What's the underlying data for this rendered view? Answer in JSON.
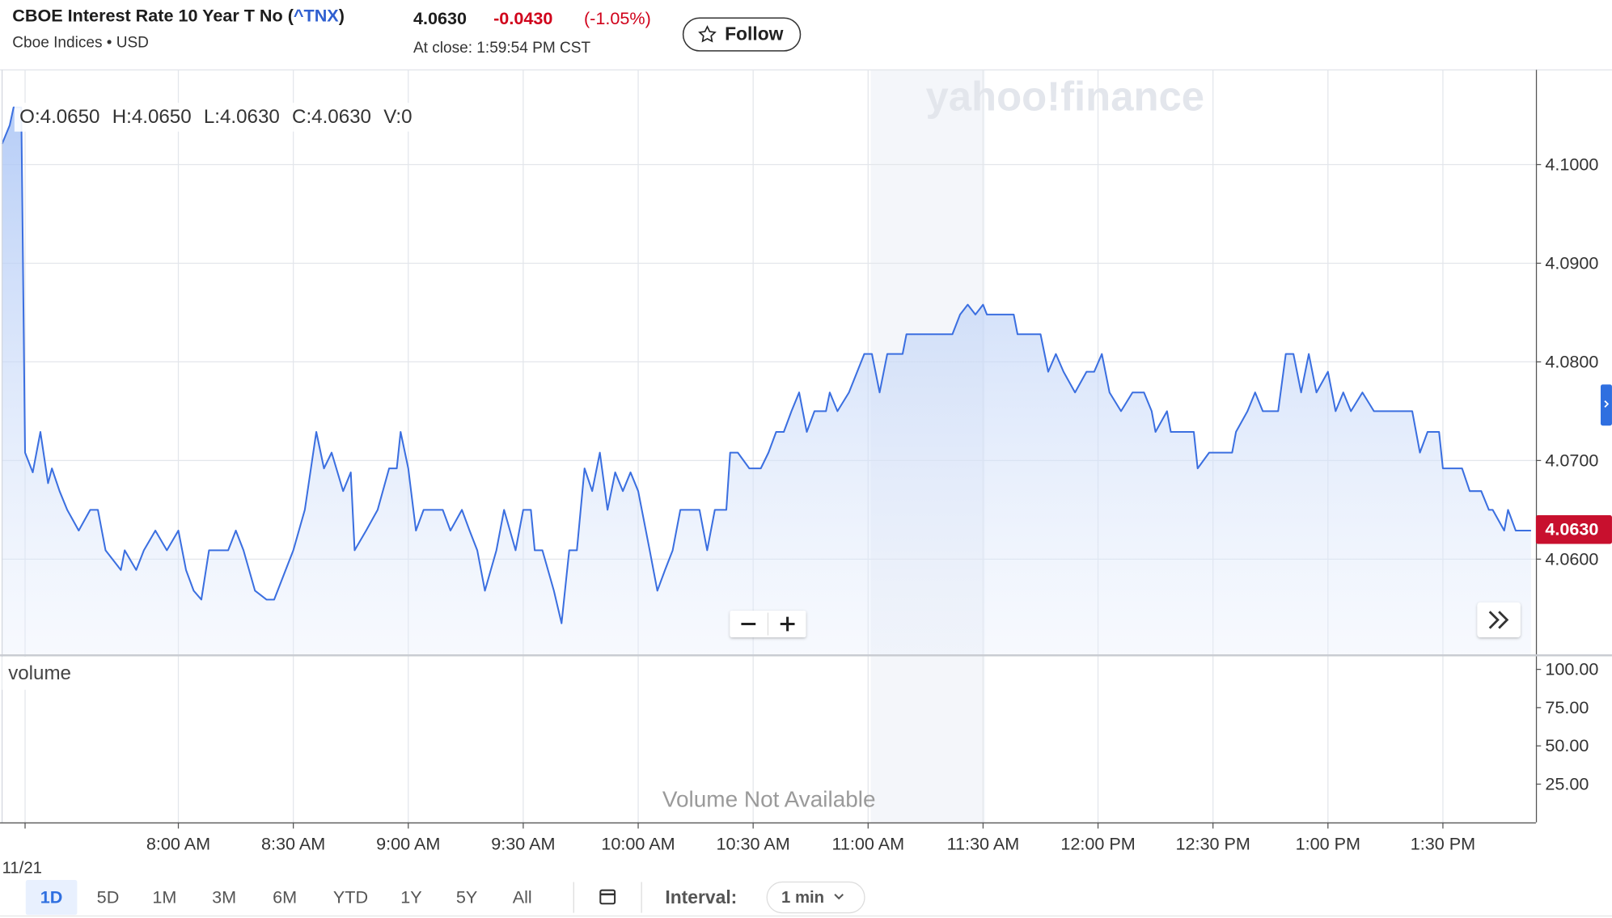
{
  "header": {
    "title": "CBOE Interest Rate 10 Year T No (",
    "symbol": "^TNX",
    "title_end": ")",
    "exchange": "Cboe Indices • USD",
    "price": "4.0630",
    "change": "-0.0430",
    "change_pct": "(-1.05%)",
    "close_time": "At close: 1:59:54 PM CST",
    "follow": "Follow"
  },
  "chart_data": {
    "type": "line",
    "color": "#3b6fe0",
    "watermark": "yahoo!finance",
    "ohlc": [
      "O:4.0650",
      "H:4.0650",
      "L:4.0630",
      "C:4.0630",
      "V:0"
    ],
    "last_label": "4.0630",
    "last_value": 4.063,
    "volume_label": "volume",
    "volume_note": "Volume Not Available",
    "xlim": [
      "7:14 AM",
      "1:54 PM"
    ],
    "xticks": [
      {
        "value": "7:20 AM",
        "label": "11/21"
      },
      "8:00 AM",
      "8:30 AM",
      "9:00 AM",
      "9:30 AM",
      "10:00 AM",
      "10:30 AM",
      "11:00 AM",
      "11:30 AM",
      "12:00 PM",
      "12:30 PM",
      "1:00 PM",
      "1:30 PM"
    ],
    "ylim": [
      4.0503,
      4.1096
    ],
    "yticks": [
      {
        "value": 4.06,
        "label": "4.0600"
      },
      {
        "value": 4.07,
        "label": "4.0700"
      },
      {
        "value": 4.08,
        "label": "4.0800"
      },
      {
        "value": 4.09,
        "label": "4.0900"
      },
      {
        "value": 4.1,
        "label": "4.1000"
      }
    ],
    "y2lim": [
      0,
      109.5
    ],
    "y2ticks": [
      {
        "value": 25,
        "label": "25.00"
      },
      {
        "value": 50,
        "label": "50.00"
      },
      {
        "value": 75,
        "label": "75.00"
      },
      {
        "value": 100,
        "label": "100.00"
      }
    ],
    "grid": true,
    "x": [
      "7:14 AM",
      "7:16 AM",
      "7:17 AM",
      "7:19 AM",
      "7:20 AM",
      "7:22 AM",
      "7:24 AM",
      "7:26 AM",
      "7:27 AM",
      "7:29 AM",
      "7:31 AM",
      "7:34 AM",
      "7:37 AM",
      "7:39 AM",
      "7:41 AM",
      "7:45 AM",
      "7:46 AM",
      "7:49 AM",
      "7:51 AM",
      "7:54 AM",
      "7:57 AM",
      "8:00 AM",
      "8:02 AM",
      "8:04 AM",
      "8:06 AM",
      "8:08 AM",
      "8:13 AM",
      "8:15 AM",
      "8:17 AM",
      "8:20 AM",
      "8:23 AM",
      "8:25 AM",
      "8:28 AM",
      "8:30 AM",
      "8:33 AM",
      "8:36 AM",
      "8:38 AM",
      "8:40 AM",
      "8:43 AM",
      "8:45 AM",
      "8:46 AM",
      "8:49 AM",
      "8:52 AM",
      "8:55 AM",
      "8:57 AM",
      "8:58 AM",
      "9:00 AM",
      "9:02 AM",
      "9:04 AM",
      "9:09 AM",
      "9:11 AM",
      "9:14 AM",
      "9:16 AM",
      "9:18 AM",
      "9:20 AM",
      "9:23 AM",
      "9:25 AM",
      "9:28 AM",
      "9:30 AM",
      "9:32 AM",
      "9:33 AM",
      "9:35 AM",
      "9:38 AM",
      "9:40 AM",
      "9:42 AM",
      "9:44 AM",
      "9:46 AM",
      "9:48 AM",
      "9:50 AM",
      "9:52 AM",
      "9:54 AM",
      "9:56 AM",
      "9:58 AM",
      "10:00 AM",
      "10:03 AM",
      "10:05 AM",
      "10:07 AM",
      "10:09 AM",
      "10:11 AM",
      "10:16 AM",
      "10:18 AM",
      "10:20 AM",
      "10:23 AM",
      "10:24 AM",
      "10:26 AM",
      "10:29 AM",
      "10:32 AM",
      "10:34 AM",
      "10:36 AM",
      "10:38 AM",
      "10:40 AM",
      "10:42 AM",
      "10:44 AM",
      "10:46 AM",
      "10:49 AM",
      "10:50 AM",
      "10:52 AM",
      "10:55 AM",
      "10:59 AM",
      "11:01 AM",
      "11:03 AM",
      "11:05 AM",
      "11:09 AM",
      "11:10 AM",
      "11:22 AM",
      "11:24 AM",
      "11:26 AM",
      "11:28 AM",
      "11:30 AM",
      "11:31 AM",
      "11:38 AM",
      "11:39 AM",
      "11:45 AM",
      "11:47 AM",
      "11:49 AM",
      "11:51 AM",
      "11:54 AM",
      "11:57 AM",
      "11:59 AM",
      "12:01 PM",
      "12:03 PM",
      "12:06 PM",
      "12:09 PM",
      "12:12 PM",
      "12:14 PM",
      "12:15 PM",
      "12:18 PM",
      "12:19 PM",
      "12:25 PM",
      "12:26 PM",
      "12:29 PM",
      "12:35 PM",
      "12:36 PM",
      "12:39 PM",
      "12:41 PM",
      "12:43 PM",
      "12:47 PM",
      "12:49 PM",
      "12:51 PM",
      "12:53 PM",
      "12:55 PM",
      "12:57 PM",
      "1:00 PM",
      "1:02 PM",
      "1:04 PM",
      "1:06 PM",
      "1:09 PM",
      "1:12 PM",
      "1:14 PM",
      "1:22 PM",
      "1:24 PM",
      "1:26 PM",
      "1:29 PM",
      "1:30 PM",
      "1:35 PM",
      "1:37 PM",
      "1:40 PM",
      "1:42 PM",
      "1:43 PM",
      "1:46 PM",
      "1:47 PM",
      "1:49 PM",
      "1:53 PM"
    ],
    "values": [
      4.1021,
      4.104,
      4.1058,
      4.1058,
      4.0708,
      4.0688,
      4.0729,
      4.0677,
      4.0692,
      4.0669,
      4.065,
      4.0629,
      4.065,
      4.065,
      4.0609,
      4.0589,
      4.0609,
      4.0589,
      4.0609,
      4.0629,
      4.0609,
      4.0629,
      4.0589,
      4.0568,
      4.0559,
      4.0609,
      4.0609,
      4.0629,
      4.0609,
      4.0568,
      4.0559,
      4.0559,
      4.0589,
      4.0609,
      4.065,
      4.0729,
      4.0692,
      4.0708,
      4.0669,
      4.0688,
      4.0609,
      4.0629,
      4.065,
      4.0692,
      4.0692,
      4.0729,
      4.0692,
      4.0629,
      4.065,
      4.065,
      4.0629,
      4.065,
      4.0629,
      4.0609,
      4.0568,
      4.0609,
      4.065,
      4.0609,
      4.065,
      4.065,
      4.0609,
      4.0609,
      4.0568,
      4.0535,
      4.0609,
      4.0609,
      4.0692,
      4.0669,
      4.0708,
      4.065,
      4.0688,
      4.0669,
      4.0688,
      4.0669,
      4.0609,
      4.0568,
      4.0589,
      4.0609,
      4.065,
      4.065,
      4.0609,
      4.065,
      4.065,
      4.0708,
      4.0708,
      4.0692,
      4.0692,
      4.0708,
      4.0729,
      4.0729,
      4.075,
      4.0769,
      4.0729,
      4.075,
      4.075,
      4.0769,
      4.075,
      4.0769,
      4.0808,
      4.0808,
      4.0769,
      4.0808,
      4.0808,
      4.0828,
      4.0828,
      4.0848,
      4.0858,
      4.0848,
      4.0858,
      4.0848,
      4.0848,
      4.0828,
      4.0828,
      4.079,
      4.0808,
      4.079,
      4.0769,
      4.079,
      4.079,
      4.0808,
      4.0769,
      4.075,
      4.0769,
      4.0769,
      4.075,
      4.0729,
      4.075,
      4.0729,
      4.0729,
      4.0692,
      4.0708,
      4.0708,
      4.0729,
      4.075,
      4.0769,
      4.075,
      4.075,
      4.0808,
      4.0808,
      4.0769,
      4.0808,
      4.0769,
      4.079,
      4.075,
      4.0769,
      4.075,
      4.0769,
      4.075,
      4.075,
      4.075,
      4.0708,
      4.0729,
      4.0729,
      4.0692,
      4.0692,
      4.0669,
      4.0669,
      4.065,
      4.065,
      4.0629,
      4.065,
      4.0629,
      4.0629
    ]
  },
  "controls": {
    "ranges": [
      "1D",
      "5D",
      "1M",
      "3M",
      "6M",
      "YTD",
      "1Y",
      "5Y",
      "All"
    ],
    "interval_label": "Interval:",
    "interval": "1 min"
  }
}
